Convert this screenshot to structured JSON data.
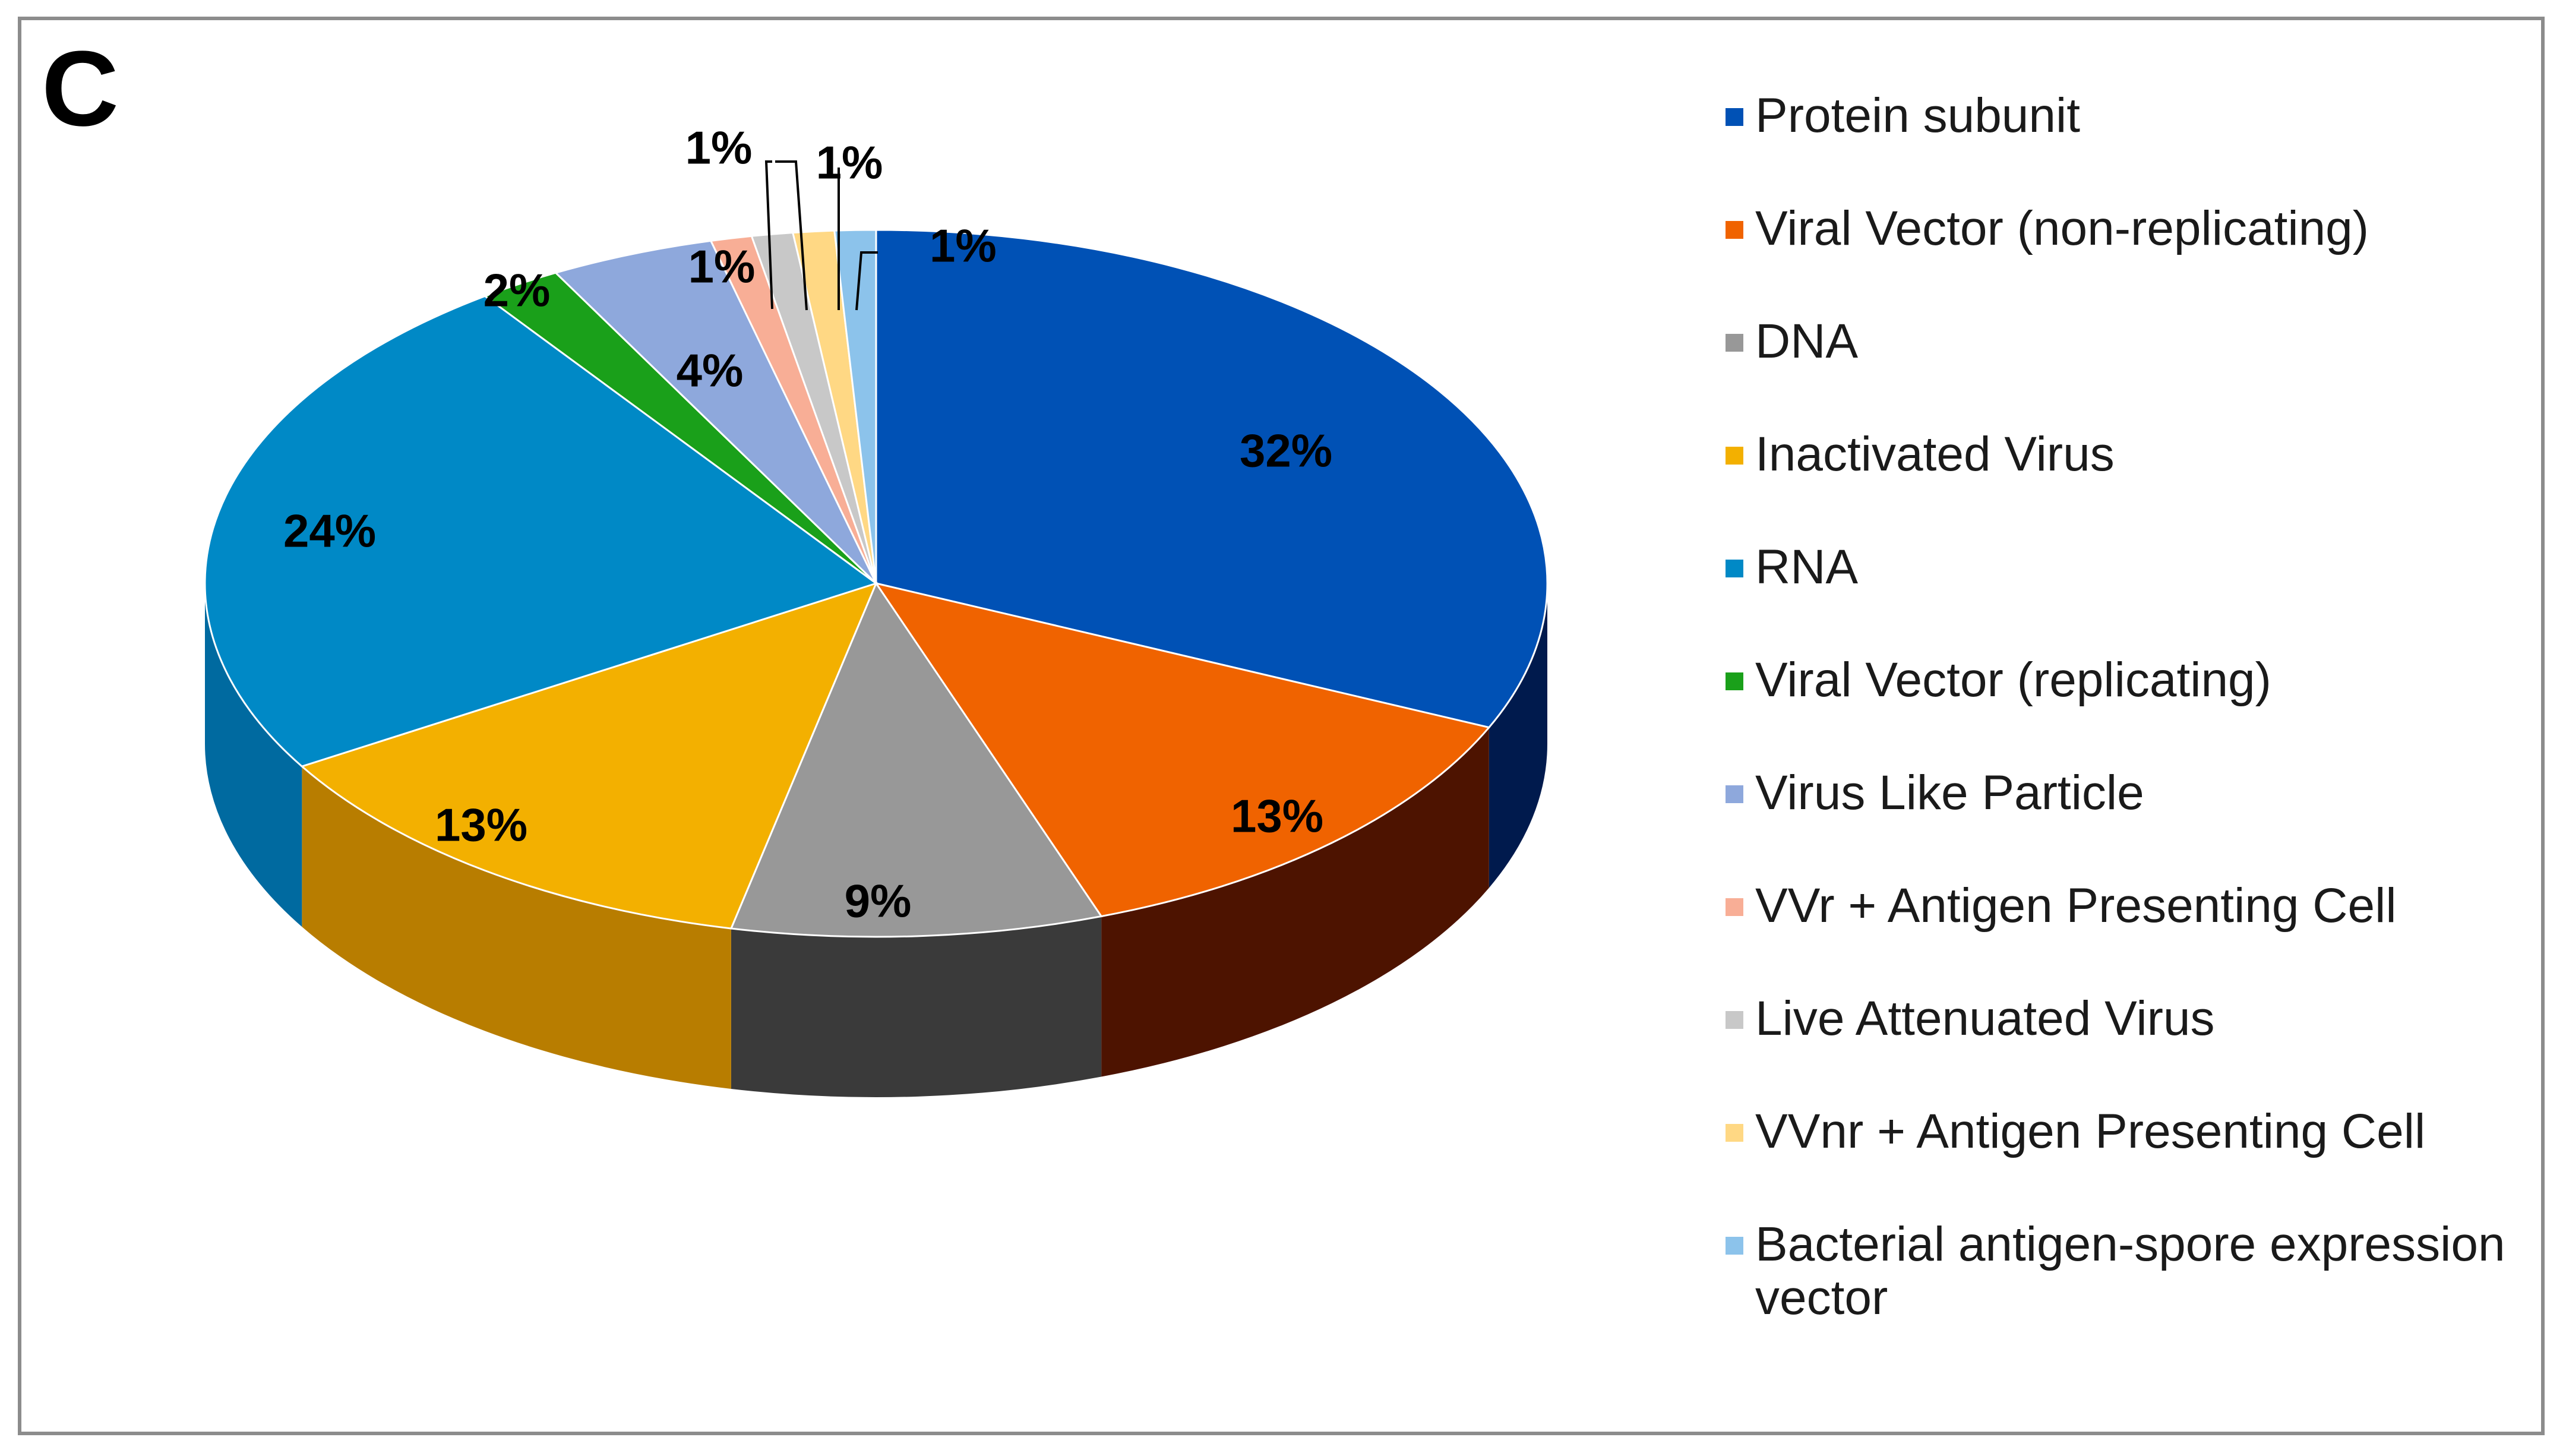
{
  "panel_label": "C",
  "chart_data": {
    "type": "pie",
    "title": "",
    "style": "3d",
    "slices": [
      {
        "label": "Protein subunit",
        "value": 32,
        "display": "32%",
        "color": "#0051b5",
        "side_color": "#001a4d"
      },
      {
        "label": "Viral Vector (non-replicating)",
        "value": 13,
        "display": "13%",
        "color": "#f06300",
        "side_color": "#4d1300"
      },
      {
        "label": "DNA",
        "value": 9,
        "display": "9%",
        "color": "#989898",
        "side_color": "#3a3a3a"
      },
      {
        "label": "Inactivated Virus",
        "value": 13,
        "display": "13%",
        "color": "#f3b000",
        "side_color": "#b87d00"
      },
      {
        "label": "RNA",
        "value": 24,
        "display": "24%",
        "color": "#0089c6",
        "side_color": "#006aa0"
      },
      {
        "label": "Viral Vector (replicating)",
        "value": 2,
        "display": "2%",
        "color": "#1aa01a",
        "side_color": "#0d6a0d"
      },
      {
        "label": "Virus Like Particle",
        "value": 4,
        "display": "4%",
        "color": "#8ea8dc",
        "side_color": "#5a77b0"
      },
      {
        "label": "VVr + Antigen Presenting Cell",
        "value": 1,
        "display": "1%",
        "color": "#f8ae96",
        "side_color": "#c07a63"
      },
      {
        "label": "Live Attenuated Virus",
        "value": 1,
        "display": "1%",
        "color": "#c8c8c8",
        "side_color": "#8a8a8a"
      },
      {
        "label": "VVnr + Antigen Presenting Cell",
        "value": 1,
        "display": "1%",
        "color": "#ffd884",
        "side_color": "#c8a04a"
      },
      {
        "label": "Bacterial antigen-spore expression vector",
        "value": 1,
        "display": "1%",
        "color": "#8cc3eb",
        "side_color": "#5a93bb"
      }
    ],
    "legend_position": "right"
  }
}
